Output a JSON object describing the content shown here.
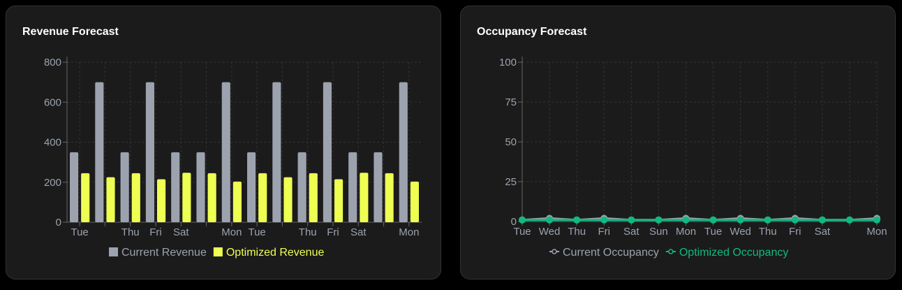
{
  "chart_data": [
    {
      "type": "bar",
      "title": "Revenue Forecast",
      "categories": [
        "Tue",
        "Wed",
        "Thu",
        "Fri",
        "Sat",
        "Sun",
        "Mon",
        "Tue",
        "Wed",
        "Thu",
        "Fri",
        "Sat",
        "Sun",
        "Mon"
      ],
      "visible_tick_labels": [
        "Tue",
        "",
        "Thu",
        "Fri",
        "Sat",
        "",
        "Mon",
        "Tue",
        "",
        "Thu",
        "Fri",
        "Sat",
        "",
        "Mon"
      ],
      "ylim": [
        0,
        800
      ],
      "yticks": [
        0,
        200,
        400,
        600,
        800
      ],
      "grid": true,
      "legend": "bottom",
      "series": [
        {
          "name": "Current Revenue",
          "color": "#9ca3af",
          "values": [
            350,
            700,
            350,
            700,
            350,
            350,
            700,
            350,
            700,
            350,
            700,
            350,
            350,
            700
          ]
        },
        {
          "name": "Optimized Revenue",
          "color": "#eeff52",
          "values": [
            245,
            225,
            245,
            215,
            247,
            245,
            203,
            245,
            225,
            245,
            215,
            247,
            245,
            203
          ]
        }
      ]
    },
    {
      "type": "line",
      "title": "Occupancy Forecast",
      "categories": [
        "Tue",
        "Wed",
        "Thu",
        "Fri",
        "Sat",
        "Sun",
        "Mon",
        "Tue",
        "Wed",
        "Thu",
        "Fri",
        "Sat",
        "Sun",
        "Mon"
      ],
      "visible_tick_labels": [
        "Tue",
        "Wed",
        "Thu",
        "Fri",
        "Sat",
        "Sun",
        "Mon",
        "Tue",
        "Wed",
        "Thu",
        "Fri",
        "Sat",
        "",
        "Mon"
      ],
      "ylim": [
        0,
        100
      ],
      "yticks": [
        0,
        25,
        50,
        75,
        100
      ],
      "grid": true,
      "legend": "bottom",
      "series": [
        {
          "name": "Current Occupancy",
          "color": "#9ca3af",
          "values": [
            1,
            2,
            1,
            2,
            1,
            1,
            2,
            1,
            2,
            1,
            2,
            1,
            1,
            2
          ]
        },
        {
          "name": "Optimized Occupancy",
          "color": "#10b981",
          "values": [
            1,
            1,
            1,
            1,
            1,
            1,
            1,
            1,
            1,
            1,
            1,
            1,
            1,
            1
          ]
        }
      ]
    }
  ]
}
